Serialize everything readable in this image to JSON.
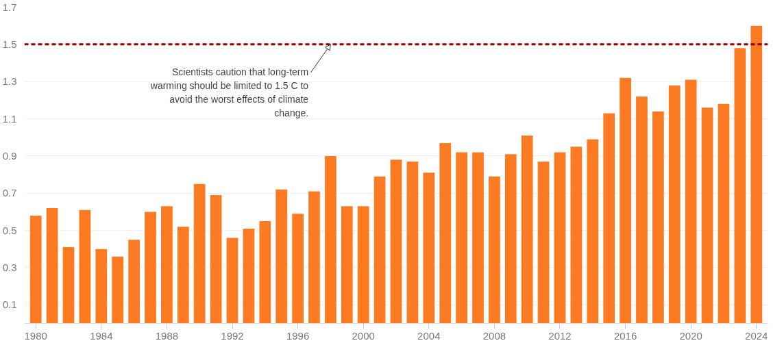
{
  "chart_data": {
    "type": "bar",
    "x": [
      1980,
      1981,
      1982,
      1983,
      1984,
      1985,
      1986,
      1987,
      1988,
      1989,
      1990,
      1991,
      1992,
      1993,
      1994,
      1995,
      1996,
      1997,
      1998,
      1999,
      2000,
      2001,
      2002,
      2003,
      2004,
      2005,
      2006,
      2007,
      2008,
      2009,
      2010,
      2011,
      2012,
      2013,
      2014,
      2015,
      2016,
      2017,
      2018,
      2019,
      2020,
      2021,
      2022,
      2023,
      2024
    ],
    "values": [
      0.58,
      0.62,
      0.41,
      0.61,
      0.4,
      0.36,
      0.45,
      0.6,
      0.63,
      0.52,
      0.75,
      0.69,
      0.46,
      0.51,
      0.55,
      0.72,
      0.59,
      0.71,
      0.9,
      0.63,
      0.63,
      0.79,
      0.88,
      0.87,
      0.81,
      0.97,
      0.92,
      0.92,
      0.79,
      0.91,
      1.01,
      0.87,
      0.92,
      0.95,
      0.99,
      1.13,
      1.32,
      1.22,
      1.14,
      1.28,
      1.31,
      1.16,
      1.18,
      1.48,
      1.6
    ],
    "color": "#fc7b22",
    "xlim": [
      1979.3,
      2024.7
    ],
    "xticks": [
      1980,
      1984,
      1988,
      1992,
      1996,
      2000,
      2004,
      2008,
      2012,
      2016,
      2020,
      2024
    ],
    "ylim": [
      0,
      1.7
    ],
    "yticks": [
      0.1,
      0.3,
      0.5,
      0.7,
      0.9,
      1.1,
      1.3,
      1.5,
      1.7
    ],
    "grid": "y",
    "ref_lines": [
      {
        "axis": "y",
        "value": 1.5,
        "color": "#8b0000",
        "line_style": "dashed"
      }
    ],
    "annotations": [
      {
        "text": "Scientists caution that long-term\nwarming should be limited to 1.5 C to\navoid the worst effects of climate\nchange.",
        "x": 1998,
        "y": 1.5
      }
    ]
  }
}
